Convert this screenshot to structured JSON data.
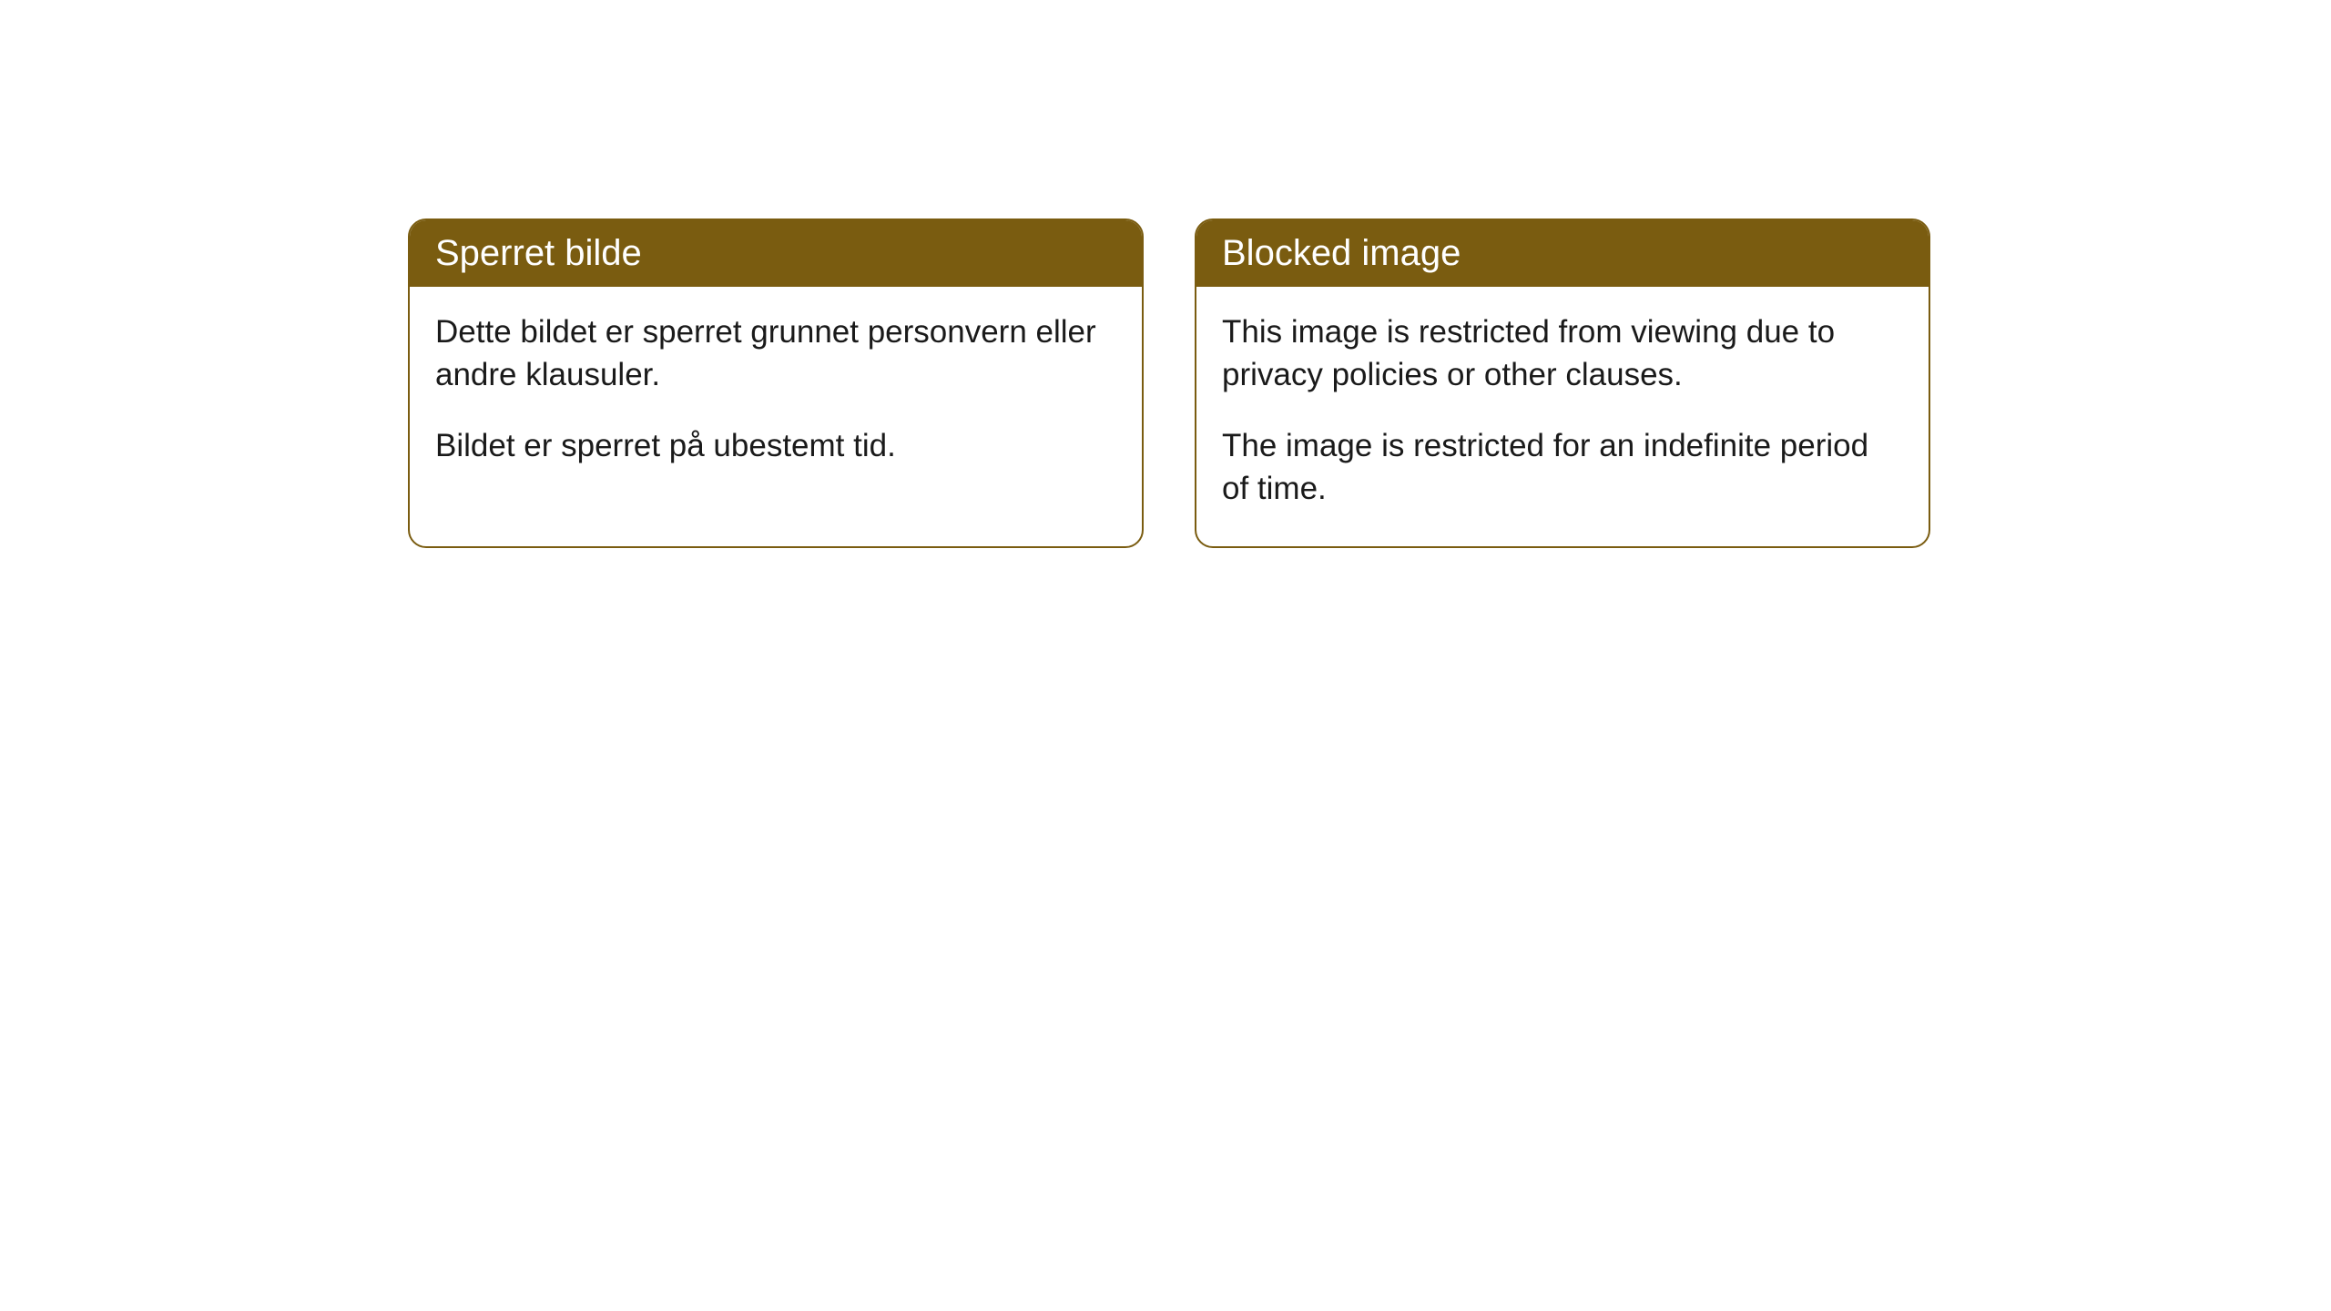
{
  "cards": [
    {
      "title": "Sperret bilde",
      "paragraph1": "Dette bildet er sperret grunnet personvern eller andre klausuler.",
      "paragraph2": "Bildet er sperret på ubestemt tid."
    },
    {
      "title": "Blocked image",
      "paragraph1": "This image is restricted from viewing due to privacy policies or other clauses.",
      "paragraph2": "The image is restricted for an indefinite period of time."
    }
  ],
  "styles": {
    "header_background": "#7a5c10",
    "header_text_color": "#ffffff",
    "border_color": "#7a5c10",
    "body_background": "#ffffff",
    "body_text_color": "#1a1a1a",
    "border_radius": 20,
    "header_fontsize": 40,
    "body_fontsize": 35
  }
}
